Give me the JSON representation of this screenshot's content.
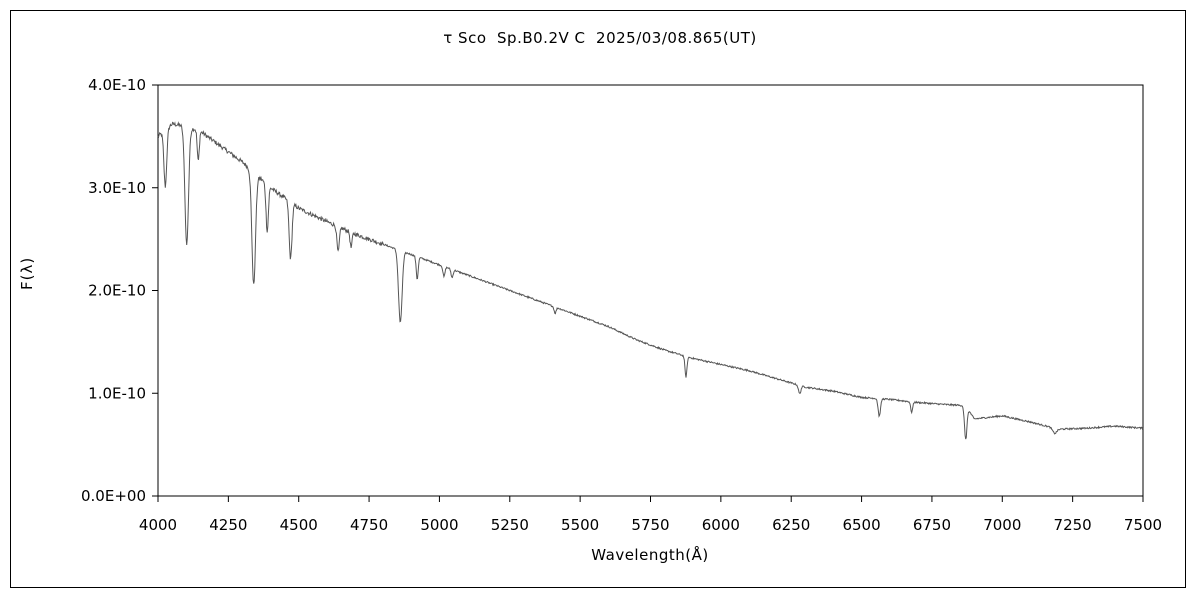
{
  "chart_data": {
    "type": "line",
    "title": "τ Sco  Sp.B0.2V C  2025/03/08.865(UT)",
    "xlabel": "Wavelength(Å)",
    "ylabel": "F(λ)",
    "xlim": [
      4000,
      7500
    ],
    "ylim": [
      0,
      4e-10
    ],
    "x_ticks": [
      4000,
      4250,
      4500,
      4750,
      5000,
      5250,
      5500,
      5750,
      6000,
      6250,
      6500,
      6750,
      7000,
      7250,
      7500
    ],
    "x_tick_labels": [
      "4000",
      "4250",
      "4500",
      "4750",
      "5000",
      "5250",
      "5500",
      "5750",
      "6000",
      "6250",
      "6500",
      "6750",
      "7000",
      "7250",
      "7500"
    ],
    "y_ticks": [
      0,
      1e-10,
      2e-10,
      3e-10,
      4e-10
    ],
    "y_tick_labels": [
      "0.0E+00",
      "1.0E-10",
      "2.0E-10",
      "3.0E-10",
      "4.0E-10"
    ],
    "grid": false,
    "legend": "none",
    "line_color": "#555555",
    "continuum": {
      "x": [
        4000,
        4050,
        4100,
        4150,
        4200,
        4250,
        4300,
        4400,
        4500,
        4600,
        4700,
        4800,
        4900,
        5000,
        5100,
        5200,
        5300,
        5400,
        5500,
        5600,
        5700,
        5800,
        5900,
        6000,
        6100,
        6200,
        6300,
        6400,
        6500,
        6600,
        6700,
        6800,
        6870,
        6900,
        7000,
        7100,
        7200,
        7300,
        7400,
        7500
      ],
      "y": [
        3.5e-10,
        3.62e-10,
        3.6e-10,
        3.55e-10,
        3.45e-10,
        3.35e-10,
        3.25e-10,
        3e-10,
        2.8e-10,
        2.67e-10,
        2.55e-10,
        2.45e-10,
        2.35e-10,
        2.25e-10,
        2.15e-10,
        2.05e-10,
        1.95e-10,
        1.85e-10,
        1.75e-10,
        1.65e-10,
        1.52e-10,
        1.42e-10,
        1.34e-10,
        1.28e-10,
        1.22e-10,
        1.14e-10,
        1.06e-10,
        1.02e-10,
        9.6e-11,
        9.4e-11,
        9.1e-11,
        8.9e-11,
        8.8e-11,
        7.5e-11,
        7.8e-11,
        7.2e-11,
        6.5e-11,
        6.6e-11,
        6.8e-11,
        6.6e-11
      ]
    },
    "absorption_lines": [
      {
        "x": 4026,
        "depth": 5.5e-11,
        "width": 7
      },
      {
        "x": 4102,
        "depth": 1.15e-10,
        "width": 9
      },
      {
        "x": 4143,
        "depth": 3e-11,
        "width": 5
      },
      {
        "x": 4340,
        "depth": 1.1e-10,
        "width": 9
      },
      {
        "x": 4388,
        "depth": 4.5e-11,
        "width": 6
      },
      {
        "x": 4471,
        "depth": 5.5e-11,
        "width": 7
      },
      {
        "x": 4640,
        "depth": 2.5e-11,
        "width": 6
      },
      {
        "x": 4686,
        "depth": 1.5e-11,
        "width": 5
      },
      {
        "x": 4861,
        "depth": 7e-11,
        "width": 9
      },
      {
        "x": 4921,
        "depth": 2.2e-11,
        "width": 5
      },
      {
        "x": 5016,
        "depth": 1e-11,
        "width": 5
      },
      {
        "x": 5045,
        "depth": 8e-12,
        "width": 5
      },
      {
        "x": 5411,
        "depth": 6e-12,
        "width": 5
      },
      {
        "x": 5876,
        "depth": 2e-11,
        "width": 5
      },
      {
        "x": 6280,
        "depth": 8e-12,
        "width": 6
      },
      {
        "x": 6563,
        "depth": 1.7e-11,
        "width": 6
      },
      {
        "x": 6678,
        "depth": 1e-11,
        "width": 5
      },
      {
        "x": 6870,
        "depth": 3.3e-11,
        "width": 6
      },
      {
        "x": 7186,
        "depth": 5e-12,
        "width": 10
      }
    ]
  }
}
